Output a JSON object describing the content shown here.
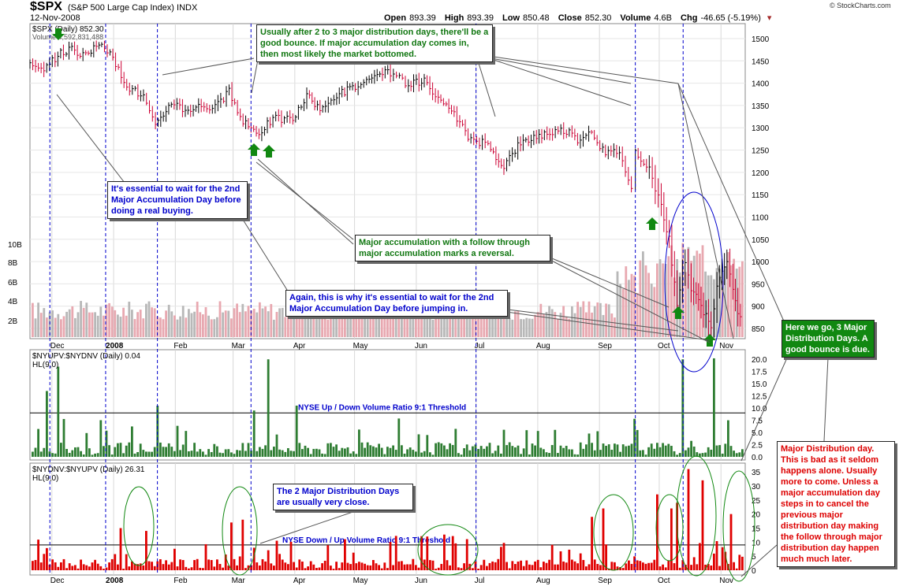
{
  "header": {
    "symbol": "$SPX",
    "title": "(S&P 500 Large Cap Index)",
    "exchange": "INDX",
    "date": "12-Nov-2008",
    "watermark": "© StockCharts.com",
    "open_label": "Open",
    "open": "893.39",
    "high_label": "High",
    "high": "893.39",
    "low_label": "Low",
    "low": "850.48",
    "close_label": "Close",
    "close": "852.30",
    "volume_label": "Volume",
    "volume": "4.6B",
    "chg_label": "Chg",
    "chg": "-46.65 (-5.19%)"
  },
  "panels": {
    "price_legend": "$SPX (Daily) 852.30",
    "volume_legend": "Volume 4,592,831,488",
    "upvol_legend": "$NYUPV:$NYDNV (Daily) 0.04",
    "upvol_ma": "HL(9,0)",
    "dnvol_legend": "$NYDNV:$NYUPV (Daily) 26.31",
    "dnvol_ma": "HL(9,0)",
    "upvol_threshold_label": "NYSE Up / Down Volume Ratio 9:1 Threshold",
    "dnvol_threshold_label": "NYSE Down / Up Volume Ratio 9:1 Threshold"
  },
  "annotations": {
    "top_note": "Usually after 2 to 3 major distribution days, there'll be a good bounce. If major accumulation day comes in, then most likely the market bottomed.",
    "wait_note": "It's essential to wait for the 2nd Major Accumulation Day before doing a real buying.",
    "follow_note": "Major accumulation with a follow through major accumulation marks a reversal.",
    "again_note": "Again, this is why it's essential to wait for the 2nd Major Accumulation Day before jumping in.",
    "close_note": "The 2 Major Distribution Days are usually very close.",
    "three_note": "Here we go, 3 Major Distribution Days. A good bounce is due.",
    "dist_note": "Major Distribution day. This is bad as it seldom happens alone. Usually more to come. Unless a major accumulation day steps in to cancel the previous major distribution day making the follow through major distribution day happen much much later."
  },
  "colors": {
    "up_bar": "#000000",
    "down_bar": "#cc0033",
    "volume": "#e8a8b0",
    "volume_alt": "#b8b8b8",
    "up_ratio": "#2e7d32",
    "down_ratio": "#e00000",
    "dashed_lines": "#0000cc",
    "arrow": "#118811"
  },
  "chart_data": [
    {
      "type": "ohlc",
      "series_name": "$SPX (Daily)",
      "ylim": [
        820,
        1530
      ],
      "y_ticks": [
        850,
        900,
        950,
        1000,
        1050,
        1100,
        1150,
        1200,
        1250,
        1300,
        1350,
        1400,
        1450,
        1500
      ],
      "volume_ticks": [
        "2B",
        "4B",
        "6B",
        "8B",
        "10B"
      ],
      "x_labels": [
        "Dec",
        "2008",
        "Feb",
        "Mar",
        "Apr",
        "May",
        "Jun",
        "Jul",
        "Aug",
        "Sep",
        "Oct",
        "Nov"
      ],
      "close_path": [
        [
          "2007-11-20",
          1440
        ],
        [
          "2007-11-27",
          1425
        ],
        [
          "2007-12-04",
          1465
        ],
        [
          "2007-12-11",
          1478
        ],
        [
          "2007-12-18",
          1460
        ],
        [
          "2007-12-26",
          1495
        ],
        [
          "2008-01-02",
          1440
        ],
        [
          "2008-01-09",
          1390
        ],
        [
          "2008-01-16",
          1370
        ],
        [
          "2008-01-22",
          1300
        ],
        [
          "2008-01-30",
          1360
        ],
        [
          "2008-02-06",
          1340
        ],
        [
          "2008-02-14",
          1350
        ],
        [
          "2008-02-21",
          1345
        ],
        [
          "2008-02-28",
          1380
        ],
        [
          "2008-03-06",
          1310
        ],
        [
          "2008-03-14",
          1290
        ],
        [
          "2008-03-21",
          1320
        ],
        [
          "2008-03-31",
          1320
        ],
        [
          "2008-04-07",
          1370
        ],
        [
          "2008-04-15",
          1340
        ],
        [
          "2008-04-22",
          1375
        ],
        [
          "2008-04-30",
          1390
        ],
        [
          "2008-05-07",
          1400
        ],
        [
          "2008-05-15",
          1420
        ],
        [
          "2008-05-19",
          1425
        ],
        [
          "2008-05-28",
          1395
        ],
        [
          "2008-06-05",
          1405
        ],
        [
          "2008-06-12",
          1360
        ],
        [
          "2008-06-20",
          1330
        ],
        [
          "2008-06-27",
          1280
        ],
        [
          "2008-07-07",
          1260
        ],
        [
          "2008-07-15",
          1215
        ],
        [
          "2008-07-22",
          1260
        ],
        [
          "2008-07-30",
          1280
        ],
        [
          "2008-08-07",
          1290
        ],
        [
          "2008-08-14",
          1295
        ],
        [
          "2008-08-21",
          1275
        ],
        [
          "2008-08-28",
          1295
        ],
        [
          "2008-09-04",
          1240
        ],
        [
          "2008-09-11",
          1250
        ],
        [
          "2008-09-17",
          1160
        ],
        [
          "2008-09-19",
          1250
        ],
        [
          "2008-09-26",
          1210
        ],
        [
          "2008-10-02",
          1120
        ],
        [
          "2008-10-06",
          1050
        ],
        [
          "2008-10-10",
          900
        ],
        [
          "2008-10-14",
          1000
        ],
        [
          "2008-10-17",
          940
        ],
        [
          "2008-10-22",
          900
        ],
        [
          "2008-10-27",
          850
        ],
        [
          "2008-10-30",
          950
        ],
        [
          "2008-11-04",
          1000
        ],
        [
          "2008-11-07",
          930
        ],
        [
          "2008-11-12",
          852
        ]
      ]
    },
    {
      "type": "bar",
      "series_name": "$NYUPV:$NYDNV (Daily)",
      "ylim": [
        0,
        21
      ],
      "y_ticks": [
        "0.0",
        "2.5",
        "5.0",
        "7.5",
        "10.0",
        "12.5",
        "15.0",
        "17.5",
        "20.0"
      ],
      "threshold": 9,
      "spikes": [
        [
          "2007-11-28",
          13.5
        ],
        [
          "2007-12-03",
          18.5
        ],
        [
          "2008-01-23",
          10.5
        ],
        [
          "2008-03-11",
          9.5
        ],
        [
          "2008-03-18",
          20.0
        ],
        [
          "2008-04-01",
          10.5
        ],
        [
          "2008-09-18",
          7.8
        ],
        [
          "2008-09-19",
          5.5
        ],
        [
          "2008-10-13",
          20.0
        ],
        [
          "2008-10-28",
          20.2
        ],
        [
          "2008-11-04",
          7.5
        ]
      ]
    },
    {
      "type": "bar",
      "series_name": "$NYDNV:$NYUPV (Daily)",
      "ylim": [
        0,
        37
      ],
      "y_ticks": [
        "0",
        "5",
        "10",
        "15",
        "20",
        "25",
        "30",
        "35"
      ],
      "threshold": 9,
      "spikes": [
        [
          "2008-01-04",
          15
        ],
        [
          "2008-01-17",
          14
        ],
        [
          "2008-02-28",
          17
        ],
        [
          "2008-03-06",
          18
        ],
        [
          "2008-06-06",
          12
        ],
        [
          "2008-08-28",
          19
        ],
        [
          "2008-09-02",
          22
        ],
        [
          "2008-09-29",
          27
        ],
        [
          "2008-10-07",
          22
        ],
        [
          "2008-10-09",
          24
        ],
        [
          "2008-10-15",
          36
        ],
        [
          "2008-10-22",
          32
        ],
        [
          "2008-11-05",
          23
        ],
        [
          "2008-11-06",
          20
        ],
        [
          "2008-11-12",
          26
        ]
      ]
    }
  ]
}
